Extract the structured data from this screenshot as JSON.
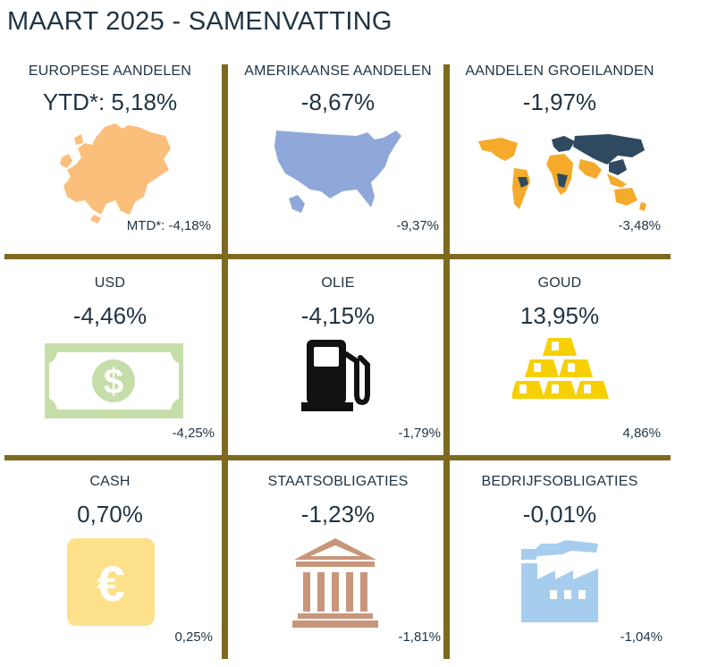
{
  "title": "MAART 2025 - SAMENVATTING",
  "cells": [
    {
      "label": "EUROPESE AANDELEN",
      "ytd": "YTD*: 5,18%",
      "mtd": "MTD*: -4,18%",
      "icon": "europe-map-icon",
      "color": "#fbbf7c"
    },
    {
      "label": "AMERIKAANSE AANDELEN",
      "ytd": "-8,67%",
      "mtd": "-9,37%",
      "icon": "usa-map-icon",
      "color": "#8fa8d9"
    },
    {
      "label": "AANDELEN GROEILANDEN",
      "ytd": "-1,97%",
      "mtd": "-3,48%",
      "icon": "world-map-icon",
      "color": "#f5aa2b"
    },
    {
      "label": "USD",
      "ytd": "-4,46%",
      "mtd": "-4,25%",
      "icon": "dollar-bill-icon",
      "color": "#c5dea9"
    },
    {
      "label": "OLIE",
      "ytd": "-4,15%",
      "mtd": "-1,79%",
      "icon": "fuel-pump-icon",
      "color": "#111111"
    },
    {
      "label": "GOUD",
      "ytd": "13,95%",
      "mtd": "4,86%",
      "icon": "gold-bars-icon",
      "color": "#f6d000"
    },
    {
      "label": "CASH",
      "ytd": "0,70%",
      "mtd": "0,25%",
      "icon": "euro-icon",
      "color": "#fde08a"
    },
    {
      "label": "STAATSOBLIGATIES",
      "ytd": "-1,23%",
      "mtd": "-1,81%",
      "icon": "government-building-icon",
      "color": "#c8967a"
    },
    {
      "label": "BEDRIJFSOBLIGATIES",
      "ytd": "-0,01%",
      "mtd": "-1,04%",
      "icon": "factory-icon",
      "color": "#a6cdee"
    }
  ],
  "colors": {
    "divider": "#7d6a1f",
    "text": "#1f3342"
  }
}
